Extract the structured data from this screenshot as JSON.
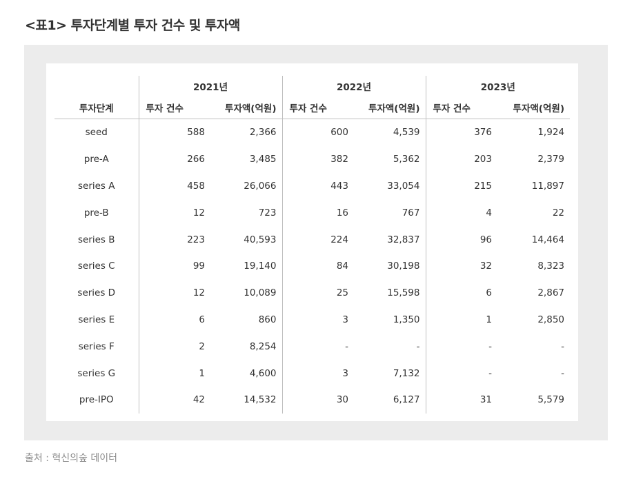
{
  "title": "<표1> 투자단계별 투자 건수 및 투자액",
  "table": {
    "stage_header": "투자단계",
    "years": [
      "2021년",
      "2022년",
      "2023년"
    ],
    "count_header": "투자 건수",
    "amount_header": "투자액(억원)",
    "rows": [
      {
        "stage": "seed",
        "c21": "588",
        "a21": "2,366",
        "c22": "600",
        "a22": "4,539",
        "c23": "376",
        "a23": "1,924"
      },
      {
        "stage": "pre-A",
        "c21": "266",
        "a21": "3,485",
        "c22": "382",
        "a22": "5,362",
        "c23": "203",
        "a23": "2,379"
      },
      {
        "stage": "series A",
        "c21": "458",
        "a21": "26,066",
        "c22": "443",
        "a22": "33,054",
        "c23": "215",
        "a23": "11,897"
      },
      {
        "stage": "pre-B",
        "c21": "12",
        "a21": "723",
        "c22": "16",
        "a22": "767",
        "c23": "4",
        "a23": "22"
      },
      {
        "stage": "series B",
        "c21": "223",
        "a21": "40,593",
        "c22": "224",
        "a22": "32,837",
        "c23": "96",
        "a23": "14,464"
      },
      {
        "stage": "series C",
        "c21": "99",
        "a21": "19,140",
        "c22": "84",
        "a22": "30,198",
        "c23": "32",
        "a23": "8,323"
      },
      {
        "stage": "series D",
        "c21": "12",
        "a21": "10,089",
        "c22": "25",
        "a22": "15,598",
        "c23": "6",
        "a23": "2,867"
      },
      {
        "stage": "series E",
        "c21": "6",
        "a21": "860",
        "c22": "3",
        "a22": "1,350",
        "c23": "1",
        "a23": "2,850"
      },
      {
        "stage": "series F",
        "c21": "2",
        "a21": "8,254",
        "c22": "-",
        "a22": "-",
        "c23": "-",
        "a23": "-"
      },
      {
        "stage": "series G",
        "c21": "1",
        "a21": "4,600",
        "c22": "3",
        "a22": "7,132",
        "c23": "-",
        "a23": "-"
      },
      {
        "stage": "pre-IPO",
        "c21": "42",
        "a21": "14,532",
        "c22": "30",
        "a22": "6,127",
        "c23": "31",
        "a23": "5,579"
      }
    ]
  },
  "source": "출처 : 혁신의숲 데이터"
}
